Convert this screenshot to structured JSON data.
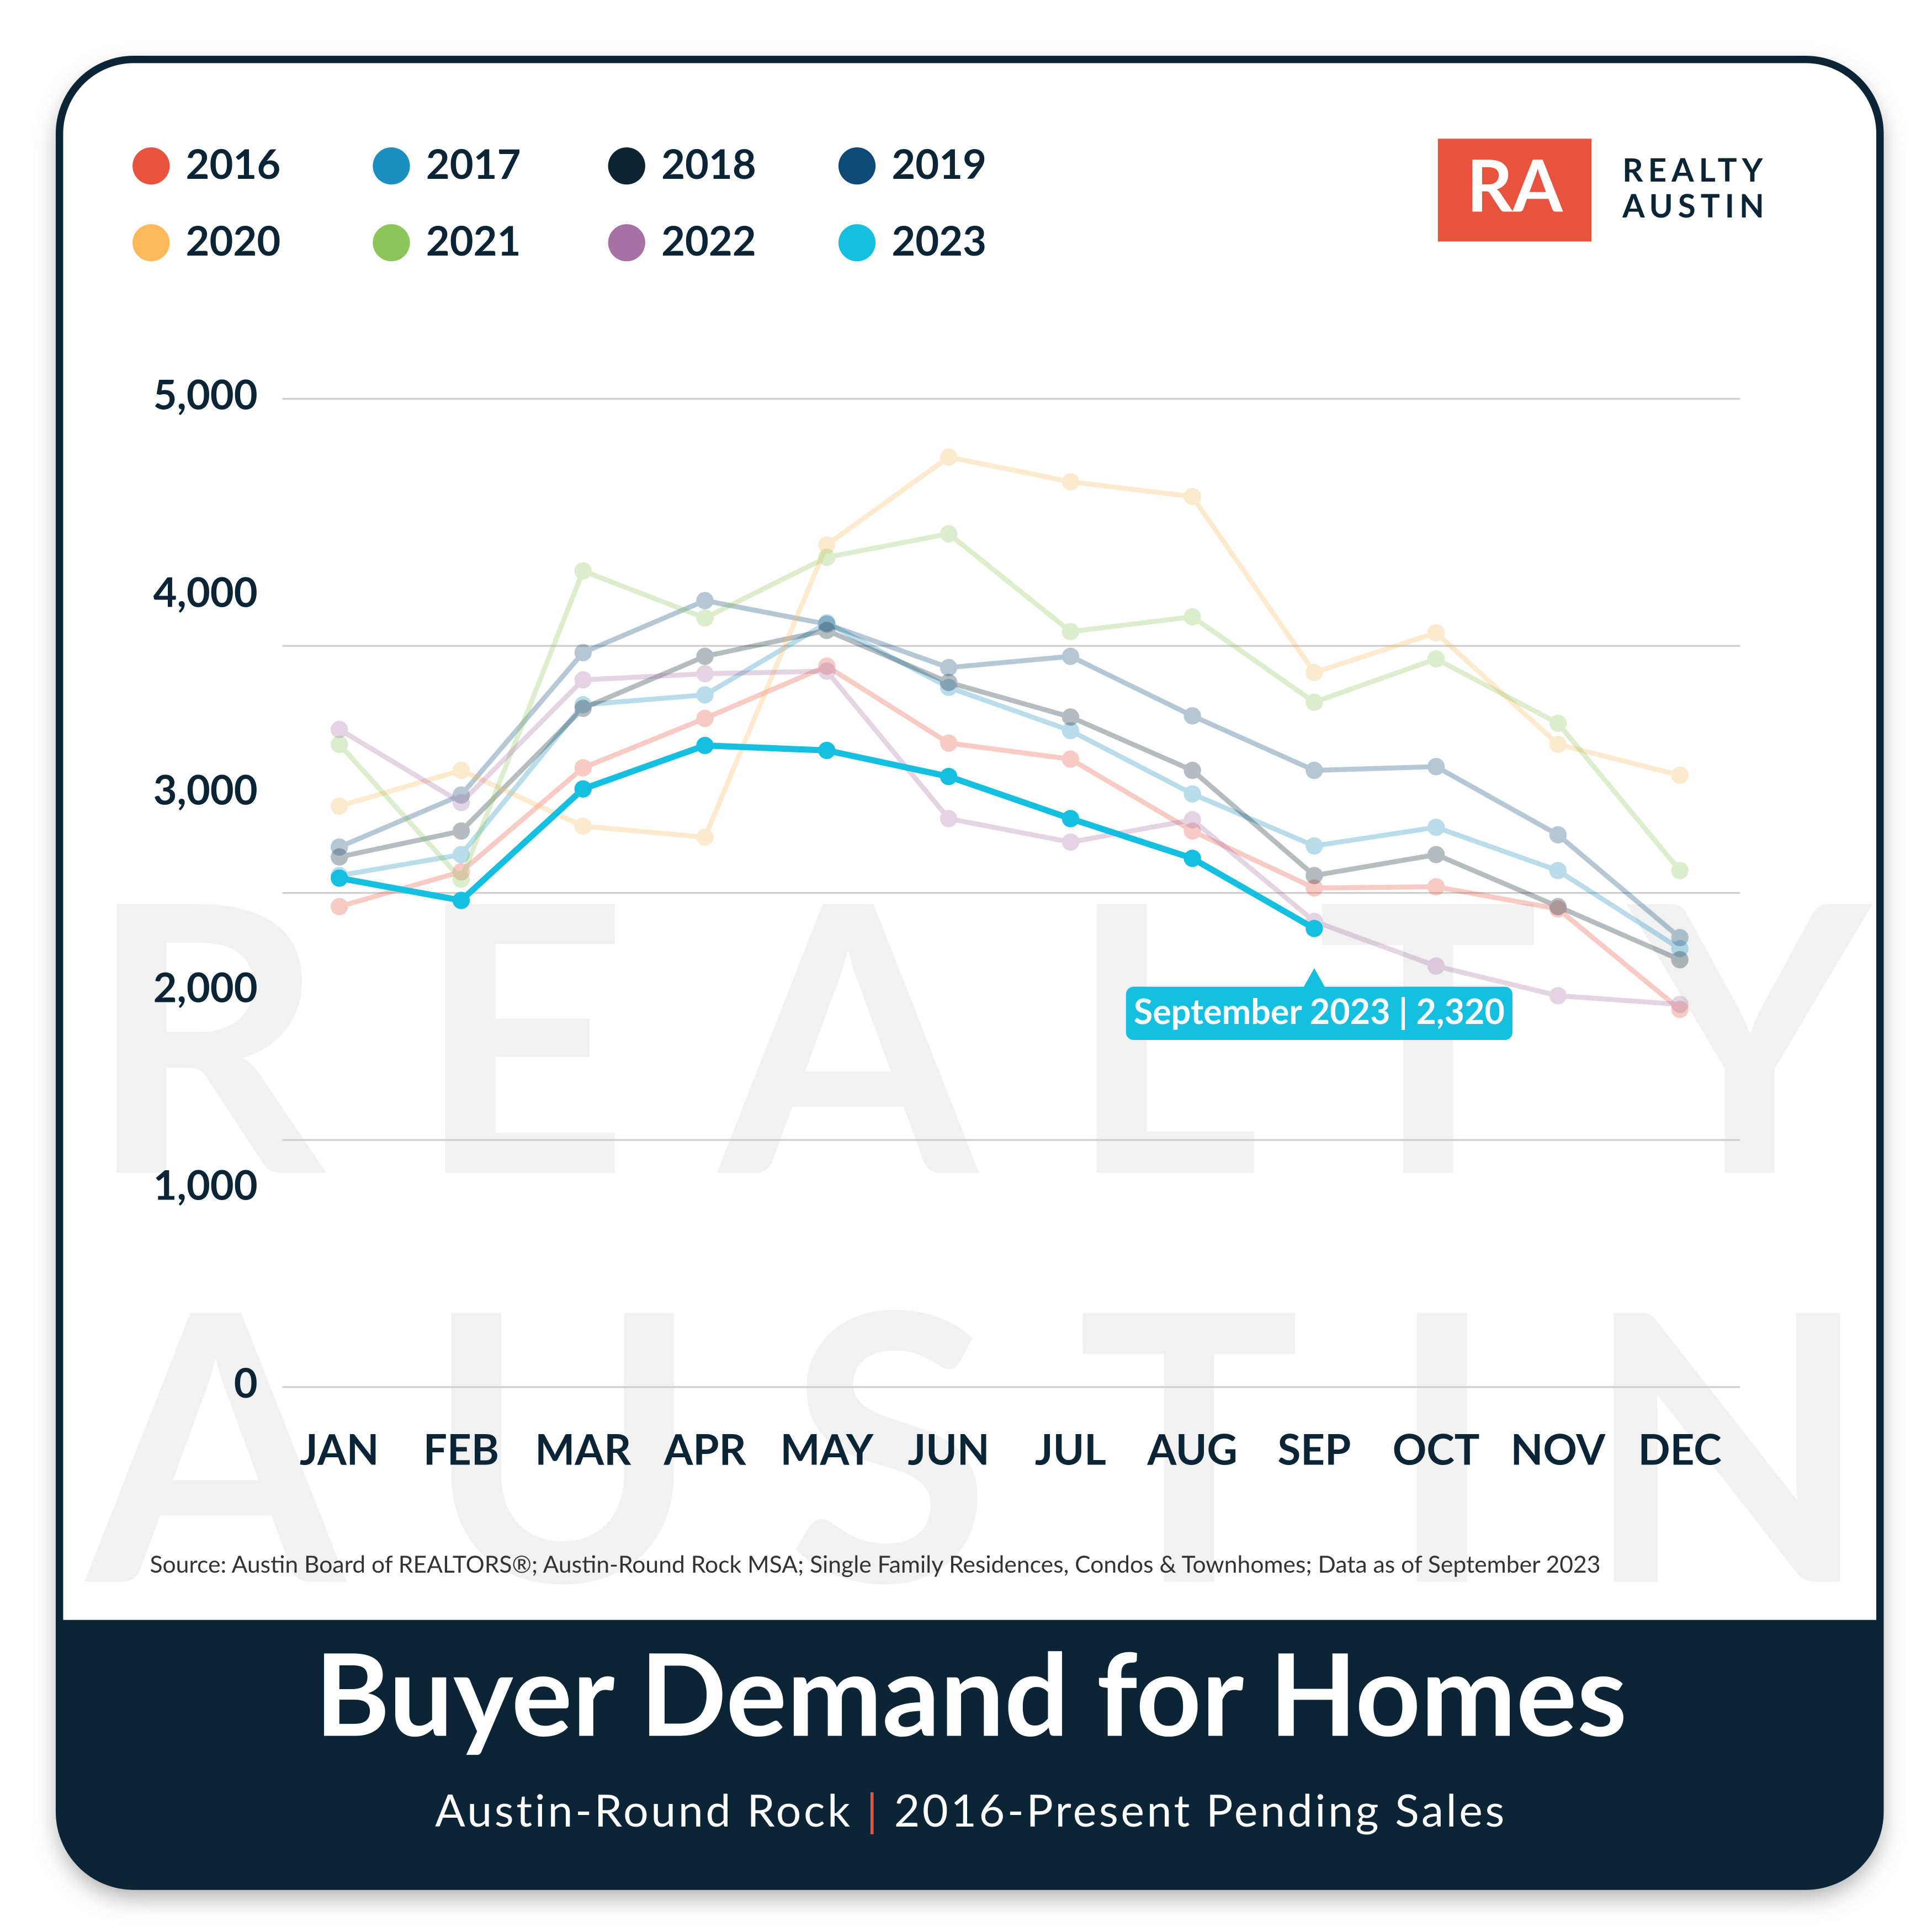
{
  "chart_data": {
    "type": "line",
    "title": "Buyer Demand for Homes",
    "subtitle_parts": [
      "Austin-Round Rock",
      "|",
      "2016-Present Pending Sales"
    ],
    "source": "Source: Austin Board of REALTORS®; Austin-Round Rock MSA; Single Family Residences, Condos & Townhomes; Data as of September 2023",
    "logo": {
      "mark": "RA",
      "lines": [
        "REALTY",
        "AUSTIN"
      ]
    },
    "watermark": [
      "REALTY",
      "AUSTIN"
    ],
    "annotation": "September 2023 | 2,320",
    "categories": [
      "JAN",
      "FEB",
      "MAR",
      "APR",
      "MAY",
      "JUN",
      "JUL",
      "AUG",
      "SEP",
      "OCT",
      "NOV",
      "DEC"
    ],
    "ylim": [
      0,
      5000
    ],
    "yticks": [
      0,
      {
        "value": 1000,
        "label": "1,000"
      },
      {
        "value": 2000,
        "label": "2,000"
      },
      {
        "value": 3000,
        "label": "3,000"
      },
      {
        "value": 4000,
        "label": "4,000"
      },
      {
        "value": 5000,
        "label": "5,000"
      }
    ],
    "gridlines": [
      0,
      1250,
      2500,
      3750,
      5000
    ],
    "grid": true,
    "legend": "top-left",
    "series": [
      {
        "name": "2016",
        "color": "#e8533f",
        "faded": true,
        "values": [
          2431,
          2607,
          3133,
          3383,
          3647,
          3258,
          3177,
          2813,
          2525,
          2531,
          2419,
          1911
        ]
      },
      {
        "name": "2017",
        "color": "#1a8fc0",
        "faded": true,
        "values": [
          2588,
          2694,
          3452,
          3502,
          3866,
          3540,
          3321,
          3001,
          2738,
          2832,
          2613,
          2218
        ]
      },
      {
        "name": "2018",
        "color": "#0d2433",
        "faded": true,
        "values": [
          2682,
          2813,
          3434,
          3697,
          3828,
          3565,
          3390,
          3120,
          2588,
          2694,
          2431,
          2162
        ]
      },
      {
        "name": "2019",
        "color": "#0d4a75",
        "faded": true,
        "values": [
          2732,
          2995,
          3716,
          3979,
          3860,
          3640,
          3697,
          3396,
          3120,
          3139,
          2794,
          2274
        ]
      },
      {
        "name": "2020",
        "color": "#fbb95c",
        "faded": true,
        "values": [
          2939,
          3120,
          2838,
          2782,
          4261,
          4705,
          4580,
          4505,
          3615,
          3816,
          3252,
          3095
        ]
      },
      {
        "name": "2021",
        "color": "#8cc65a",
        "faded": true,
        "values": [
          3252,
          2569,
          4129,
          3891,
          4198,
          4317,
          3822,
          3897,
          3465,
          3684,
          3358,
          2613
        ]
      },
      {
        "name": "2022",
        "color": "#a871a4",
        "faded": true,
        "values": [
          3327,
          2957,
          3578,
          3609,
          3622,
          2876,
          2757,
          2870,
          2356,
          2130,
          1980,
          1936
        ]
      },
      {
        "name": "2023",
        "color": "#14bfe0",
        "faded": false,
        "values": [
          2575,
          2462,
          3026,
          3246,
          3221,
          3089,
          2876,
          2675,
          2320,
          null,
          null,
          null
        ]
      }
    ]
  }
}
